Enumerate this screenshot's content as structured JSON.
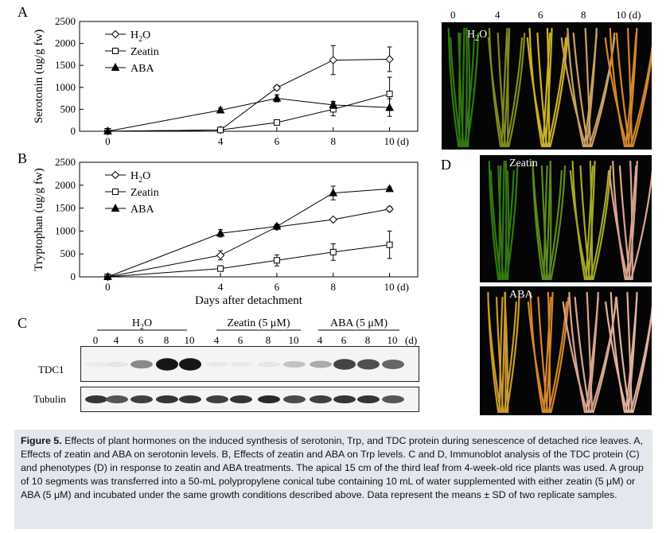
{
  "panels": {
    "A": {
      "letter": "A"
    },
    "B": {
      "letter": "B"
    },
    "C": {
      "letter": "C"
    },
    "D": {
      "letter": "D"
    }
  },
  "chart_data": [
    {
      "type": "line",
      "title": "",
      "xlabel": "",
      "ylabel": "Serotonin (ug/g fw)",
      "x": [
        0,
        4,
        6,
        8,
        10
      ],
      "x_tick_labels": [
        "0",
        "4",
        "6",
        "8",
        "10 (d)"
      ],
      "y_ticks": [
        0,
        500,
        1000,
        1500,
        2000,
        2500
      ],
      "ylim": [
        0,
        2500
      ],
      "xlim": [
        -1,
        11
      ],
      "legend": "top-left",
      "series": [
        {
          "name": "H2O",
          "marker": "diamond-open",
          "values": [
            0,
            30,
            990,
            1620,
            1640
          ],
          "errors": [
            0,
            20,
            50,
            330,
            280
          ]
        },
        {
          "name": "Zeatin",
          "marker": "square-open",
          "values": [
            0,
            30,
            200,
            500,
            850
          ],
          "errors": [
            0,
            15,
            30,
            150,
            380
          ]
        },
        {
          "name": "ABA",
          "marker": "triangle-filled",
          "values": [
            0,
            480,
            750,
            600,
            540
          ],
          "errors": [
            0,
            50,
            80,
            80,
            200
          ]
        }
      ]
    },
    {
      "type": "line",
      "title": "",
      "xlabel": "Days after detachment",
      "ylabel": "Tryptophan (ug/g fw)",
      "x": [
        0,
        4,
        6,
        8,
        10
      ],
      "x_tick_labels": [
        "0",
        "4",
        "6",
        "8",
        "10 (d)"
      ],
      "y_ticks": [
        0,
        500,
        1000,
        1500,
        2000,
        2500
      ],
      "ylim": [
        0,
        2500
      ],
      "xlim": [
        -1,
        11
      ],
      "legend": "top-left",
      "series": [
        {
          "name": "H2O",
          "marker": "diamond-open",
          "values": [
            0,
            470,
            1090,
            1250,
            1480
          ],
          "errors": [
            0,
            100,
            50,
            30,
            50
          ]
        },
        {
          "name": "Zeatin",
          "marker": "square-open",
          "values": [
            0,
            180,
            360,
            540,
            700
          ],
          "errors": [
            0,
            60,
            120,
            180,
            300
          ]
        },
        {
          "name": "ABA",
          "marker": "triangle-filled",
          "values": [
            0,
            950,
            1100,
            1830,
            1920
          ],
          "errors": [
            0,
            80,
            50,
            150,
            40
          ]
        }
      ]
    }
  ],
  "blot": {
    "groups": [
      {
        "label": "H2O",
        "lanes": [
          "0",
          "4",
          "6",
          "8",
          "10"
        ]
      },
      {
        "label": "Zeatin (5 μM)",
        "lanes": [
          "4",
          "6",
          "8",
          "10"
        ]
      },
      {
        "label": "ABA (5 μM)",
        "lanes": [
          "4",
          "6",
          "8",
          "10"
        ]
      }
    ],
    "unit": "(d)",
    "rows": [
      {
        "label": "TDC1",
        "intensities": [
          0.02,
          0.05,
          0.45,
          0.95,
          0.95,
          0.03,
          0.03,
          0.05,
          0.2,
          0.3,
          0.75,
          0.7,
          0.6
        ]
      },
      {
        "label": "Tubulin",
        "intensities": [
          0.85,
          0.7,
          0.8,
          0.85,
          0.85,
          0.8,
          0.85,
          0.9,
          0.75,
          0.8,
          0.85,
          0.85,
          0.7
        ]
      }
    ]
  },
  "photos": {
    "top_days": [
      "0",
      "4",
      "6",
      "8",
      "10 (d)"
    ],
    "top_label": "H2O",
    "mid_label": "Zeatin",
    "bottom_label": "ABA"
  },
  "colors": {
    "green": "#2f7a10",
    "yellow": "#c9b02a",
    "orange": "#d4862b",
    "pale": "#d9a48f",
    "caption_bg": "#e4e8ee"
  },
  "caption": {
    "title": "Figure 5.",
    "text": "Effects of plant hormones on the induced synthesis of serotonin, Trp, and TDC protein during senescence of detached rice leaves. A, Effects of zeatin and ABA on serotonin levels. B, Effects of zeatin and ABA on Trp levels. C and D, Immunoblot analysis of the TDC protein (C) and phenotypes (D) in response to zeatin and ABA treatments. The apical 15 cm of the third leaf from 4-week-old rice plants was used. A group of 10 segments was transferred into a 50-mL polypropylene conical tube containing 10 mL of water supplemented with either zeatin (5 μM) or ABA (5 μM) and incubated under the same growth conditions described above. Data represent the means ± SD of two replicate samples."
  }
}
